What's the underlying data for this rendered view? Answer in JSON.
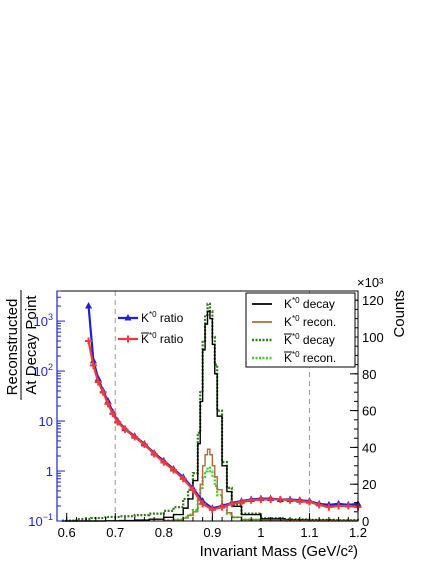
{
  "chart_data": {
    "type": "line",
    "xlabel": "Invariant Mass (GeV/c²)",
    "ylabel_left_line1": "Reconstructed",
    "ylabel_left_line2": "At Decay Point",
    "ylabel_right": "Counts",
    "right_multiplier": "×10³",
    "xlim": [
      0.58,
      1.2
    ],
    "ylim_left": [
      0.1,
      4000
    ],
    "left_scale": "log",
    "ylim_right": [
      0,
      125
    ],
    "x_ticks": [
      "0.6",
      "0.7",
      "0.8",
      "0.9",
      "1",
      "1.1",
      "1.2"
    ],
    "left_ticks": [
      {
        "v": 0.1,
        "base": "10",
        "exp": "−1"
      },
      {
        "v": 1,
        "base": "1",
        "exp": ""
      },
      {
        "v": 10,
        "base": "10",
        "exp": ""
      },
      {
        "v": 100,
        "base": "10",
        "exp": "2"
      },
      {
        "v": 1000,
        "base": "10",
        "exp": "3"
      }
    ],
    "right_ticks": [
      "0",
      "20",
      "40",
      "60",
      "80",
      "100",
      "120"
    ],
    "ref_lines_x": [
      0.7,
      1.1
    ],
    "ratio_legend": {
      "items": [
        {
          "base": "K",
          "sup": "*0",
          "suffix": " ratio",
          "bar": false,
          "color": "#1f1fd6",
          "marker": "triangle"
        },
        {
          "base": "K",
          "sup": "*0",
          "suffix": " ratio",
          "bar": true,
          "color": "#f03a3a",
          "marker": "cross"
        }
      ]
    },
    "count_legend": {
      "items": [
        {
          "base": "K",
          "sup": "*0",
          "suffix": " decay",
          "bar": false,
          "color": "#000000",
          "dash": false
        },
        {
          "base": "K",
          "sup": "*0",
          "suffix": " recon.",
          "bar": false,
          "color": "#b06a3a",
          "dash": false
        },
        {
          "base": "K",
          "sup": "*0",
          "suffix": " decay",
          "bar": true,
          "color": "#2f7a1a",
          "dash": true
        },
        {
          "base": "K",
          "sup": "*0",
          "suffix": " recon.",
          "bar": true,
          "color": "#3ccf2a",
          "dash": true
        }
      ]
    },
    "series_counts": [
      {
        "key": "kbar_decay",
        "color": "#2f7a1a",
        "dash": true,
        "width": 2.2,
        "x": [
          0.59,
          0.62,
          0.65,
          0.68,
          0.71,
          0.74,
          0.77,
          0.8,
          0.82,
          0.84,
          0.85,
          0.86,
          0.87,
          0.875,
          0.88,
          0.885,
          0.89,
          0.895,
          0.9,
          0.905,
          0.91,
          0.92,
          0.93,
          0.94,
          0.96,
          1.0,
          1.05,
          1.1,
          1.15,
          1.2
        ],
        "y": [
          0.2,
          1.0,
          1.6,
          2.2,
          2.6,
          3.2,
          4.0,
          5.5,
          7.5,
          12,
          17,
          26,
          48,
          70,
          98,
          112,
          118,
          114,
          100,
          85,
          60,
          32,
          18,
          9,
          4,
          1.5,
          0.9,
          0.6,
          0.4,
          0.3
        ]
      },
      {
        "key": "k_decay",
        "color": "#000000",
        "dash": false,
        "width": 1.4,
        "x": [
          0.59,
          0.62,
          0.65,
          0.68,
          0.71,
          0.74,
          0.77,
          0.8,
          0.82,
          0.84,
          0.85,
          0.86,
          0.87,
          0.875,
          0.88,
          0.885,
          0.89,
          0.895,
          0.9,
          0.905,
          0.91,
          0.92,
          0.93,
          0.94,
          0.96,
          1.0,
          1.05,
          1.1,
          1.15,
          1.2
        ],
        "y": [
          0.0,
          0.0,
          0.0,
          0.1,
          0.2,
          0.5,
          1.0,
          2.0,
          3.5,
          7,
          12,
          22,
          42,
          65,
          93,
          107,
          114,
          110,
          96,
          80,
          57,
          30,
          16,
          8,
          3.5,
          1.2,
          0.7,
          0.5,
          0.3,
          0.2
        ]
      },
      {
        "key": "kbar_recon",
        "color": "#3ccf2a",
        "dash": true,
        "width": 2.2,
        "x": [
          0.8,
          0.82,
          0.84,
          0.85,
          0.86,
          0.87,
          0.875,
          0.88,
          0.885,
          0.89,
          0.895,
          0.9,
          0.905,
          0.91,
          0.92,
          0.93,
          0.94,
          0.96,
          1.0,
          1.05,
          1.1,
          1.15,
          1.2
        ],
        "y": [
          0.3,
          0.8,
          2.0,
          3.5,
          6,
          12,
          18,
          24,
          27,
          29,
          27,
          24,
          19,
          14,
          8,
          4,
          2.0,
          0.8,
          0.3,
          0.2,
          0.1,
          0.1,
          0.1
        ]
      },
      {
        "key": "k_recon",
        "color": "#b06a3a",
        "dash": false,
        "width": 1.4,
        "x": [
          0.8,
          0.82,
          0.84,
          0.85,
          0.86,
          0.87,
          0.875,
          0.88,
          0.885,
          0.89,
          0.895,
          0.9,
          0.905,
          0.91,
          0.92,
          0.93,
          0.94,
          0.96,
          1.0,
          1.05,
          1.1,
          1.15,
          1.2
        ],
        "y": [
          0.2,
          0.6,
          1.6,
          3,
          5,
          12,
          20,
          30,
          36,
          39,
          36,
          30,
          24,
          17,
          9,
          4.5,
          2.0,
          0.8,
          0.3,
          0.2,
          0.1,
          0.1,
          0.1
        ]
      }
    ],
    "series_ratio": [
      {
        "key": "k_ratio",
        "color": "#1f1fd6",
        "marker": "triangle",
        "x": [
          0.645,
          0.655,
          0.665,
          0.675,
          0.685,
          0.695,
          0.705,
          0.72,
          0.74,
          0.76,
          0.78,
          0.8,
          0.82,
          0.84,
          0.86,
          0.88,
          0.9,
          0.92,
          0.94,
          0.96,
          0.98,
          1.0,
          1.02,
          1.04,
          1.06,
          1.08,
          1.1,
          1.12,
          1.14,
          1.16,
          1.18,
          1.2
        ],
        "y": [
          2000,
          160,
          70,
          40,
          25,
          15,
          10,
          7,
          5,
          3.5,
          2.3,
          1.6,
          1.1,
          0.75,
          0.45,
          0.25,
          0.18,
          0.2,
          0.23,
          0.25,
          0.27,
          0.28,
          0.28,
          0.27,
          0.27,
          0.26,
          0.25,
          0.22,
          0.21,
          0.22,
          0.21,
          0.22
        ]
      },
      {
        "key": "kbar_ratio",
        "color": "#f03a3a",
        "marker": "cross",
        "x": [
          0.645,
          0.655,
          0.665,
          0.675,
          0.685,
          0.695,
          0.705,
          0.72,
          0.74,
          0.76,
          0.78,
          0.8,
          0.82,
          0.84,
          0.86,
          0.88,
          0.9,
          0.92,
          0.94,
          0.96,
          0.98,
          1.0,
          1.02,
          1.04,
          1.06,
          1.08,
          1.1,
          1.12,
          1.14,
          1.16,
          1.18,
          1.2
        ],
        "y": [
          400,
          130,
          60,
          38,
          22,
          14,
          9.5,
          6.8,
          4.8,
          3.4,
          2.2,
          1.5,
          1.05,
          0.7,
          0.42,
          0.22,
          0.17,
          0.19,
          0.22,
          0.24,
          0.26,
          0.27,
          0.27,
          0.27,
          0.26,
          0.25,
          0.24,
          0.21,
          0.19,
          0.2,
          0.2,
          0.19
        ]
      }
    ]
  }
}
